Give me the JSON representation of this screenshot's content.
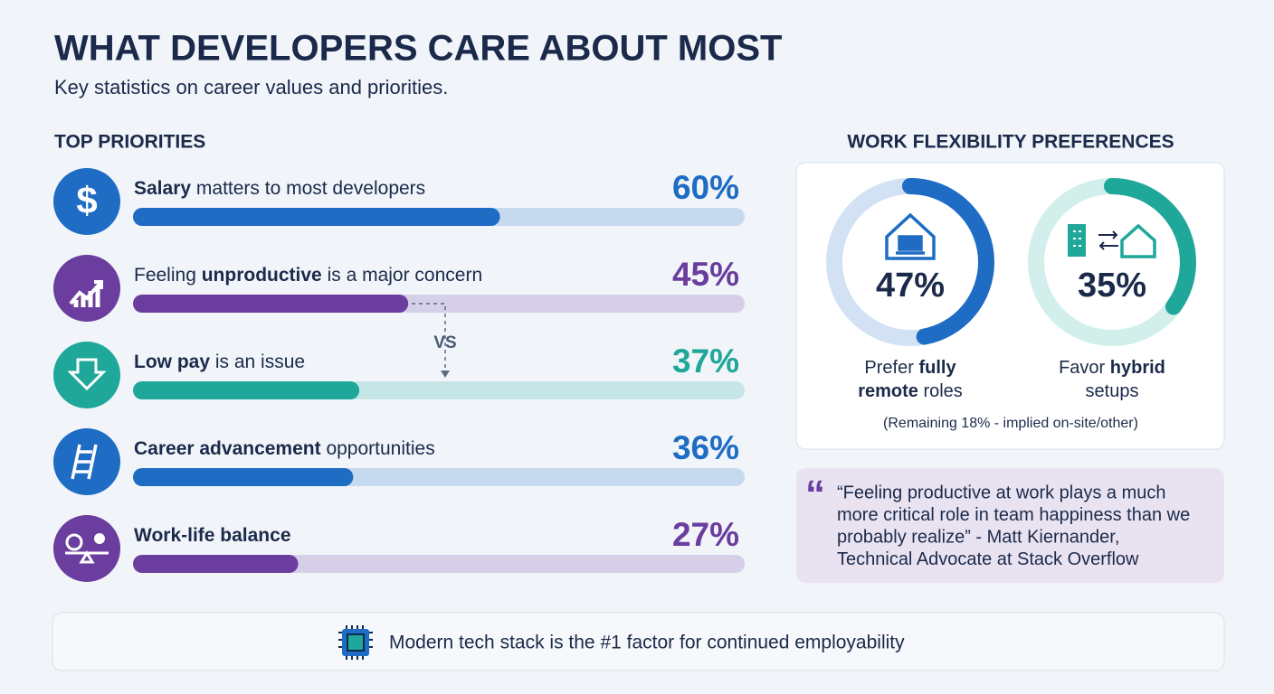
{
  "header": {
    "title": "WHAT DEVELOPERS CARE ABOUT MOST",
    "subtitle": "Key statistics on career values and priorities."
  },
  "priorities": {
    "heading": "TOP PRIORITIES",
    "xlim": [
      0,
      100
    ],
    "items": [
      {
        "segments": [
          {
            "text": "Salary",
            "bold": true
          },
          {
            "text": " matters to most developers"
          }
        ],
        "value": 60,
        "value_label": "60%",
        "color": "#1e6cc4"
      },
      {
        "segments": [
          {
            "text": "Feeling "
          },
          {
            "text": "unproductive",
            "bold": true
          },
          {
            "text": " is a major concern"
          }
        ],
        "value": 45,
        "value_label": "45%",
        "color": "#6a3d9e"
      },
      {
        "segments": [
          {
            "text": "Low pay",
            "bold": true
          },
          {
            "text": " is an issue"
          }
        ],
        "value": 37,
        "value_label": "37%",
        "color": "#1fa79a"
      },
      {
        "segments": [
          {
            "text": "Career advancement",
            "bold": true
          },
          {
            "text": " opportunities"
          }
        ],
        "value": 36,
        "value_label": "36%",
        "color": "#1e6cc4"
      },
      {
        "segments": [
          {
            "text": "Work-life balance",
            "bold": true
          }
        ],
        "value": 27,
        "value_label": "27%",
        "color": "#6a3d9e"
      }
    ],
    "comparison_label": "VS"
  },
  "flexibility": {
    "heading": "WORK FLEXIBILITY PREFERENCES",
    "range": [
      0,
      100
    ],
    "items": [
      {
        "value": 47,
        "value_label": "47%",
        "color": "#1e6cc4",
        "track": "#d2e2f4",
        "label_lines": [
          [
            {
              "text": "Prefer "
            },
            {
              "text": "fully",
              "bold": true
            }
          ],
          [
            {
              "text": "remote",
              "bold": true
            },
            {
              "text": " roles"
            }
          ]
        ]
      },
      {
        "value": 35,
        "value_label": "35%",
        "color": "#1fa79a",
        "track": "#d3efec",
        "label_lines": [
          [
            {
              "text": "Favor "
            },
            {
              "text": "hybrid",
              "bold": true
            }
          ],
          [
            {
              "text": "setups"
            }
          ]
        ]
      }
    ],
    "note": "(Remaining 18% - implied on-site/other)"
  },
  "quote": {
    "mark": "“",
    "lines": [
      "“Feeling productive at work plays a much",
      "more critical role in team happiness than we",
      "probably realize” - Matt Kiernander,",
      "Technical Advocate at Stack Overflow"
    ]
  },
  "footer": {
    "text": "Modern tech stack is the #1 factor for continued employability"
  }
}
